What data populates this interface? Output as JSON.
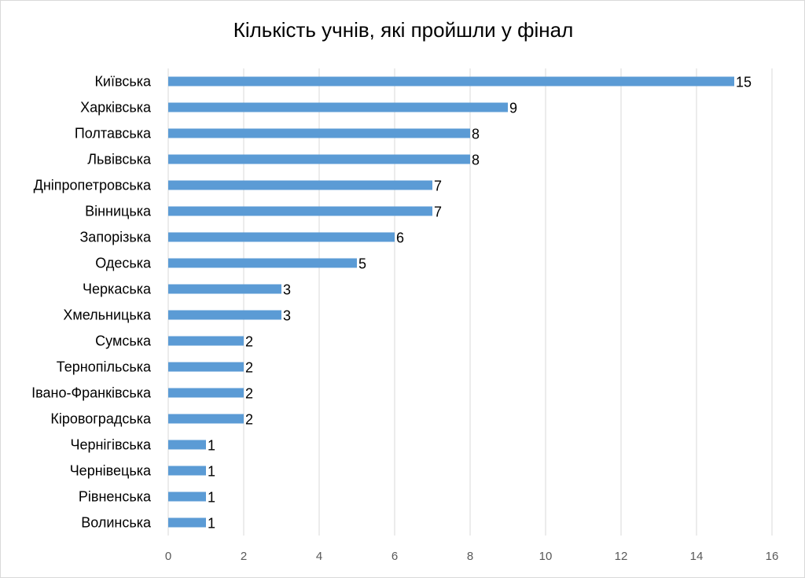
{
  "chart_data": {
    "type": "bar",
    "orientation": "horizontal",
    "title": "Кількість учнів, які пройшли у фінал",
    "categories": [
      "Київська",
      "Харківська",
      "Полтавська",
      "Львівська",
      "Дніпропетровська",
      "Вінницька",
      "Запорізька",
      "Одеська",
      "Черкаська",
      "Хмельницька",
      "Сумська",
      "Тернопільська",
      "Івано-Франківська",
      "Кіровоградська",
      "Чернігівська",
      "Чернівецька",
      "Рівненська",
      "Волинська"
    ],
    "values": [
      15,
      9,
      8,
      8,
      7,
      7,
      6,
      5,
      3,
      3,
      2,
      2,
      2,
      2,
      1,
      1,
      1,
      1
    ],
    "xlim": [
      0,
      16
    ],
    "xticks": [
      0,
      2,
      4,
      6,
      8,
      10,
      12,
      14,
      16
    ],
    "grid": "vertical",
    "data_labels": true,
    "legend": "none",
    "bar_color": "#5b9bd5"
  }
}
